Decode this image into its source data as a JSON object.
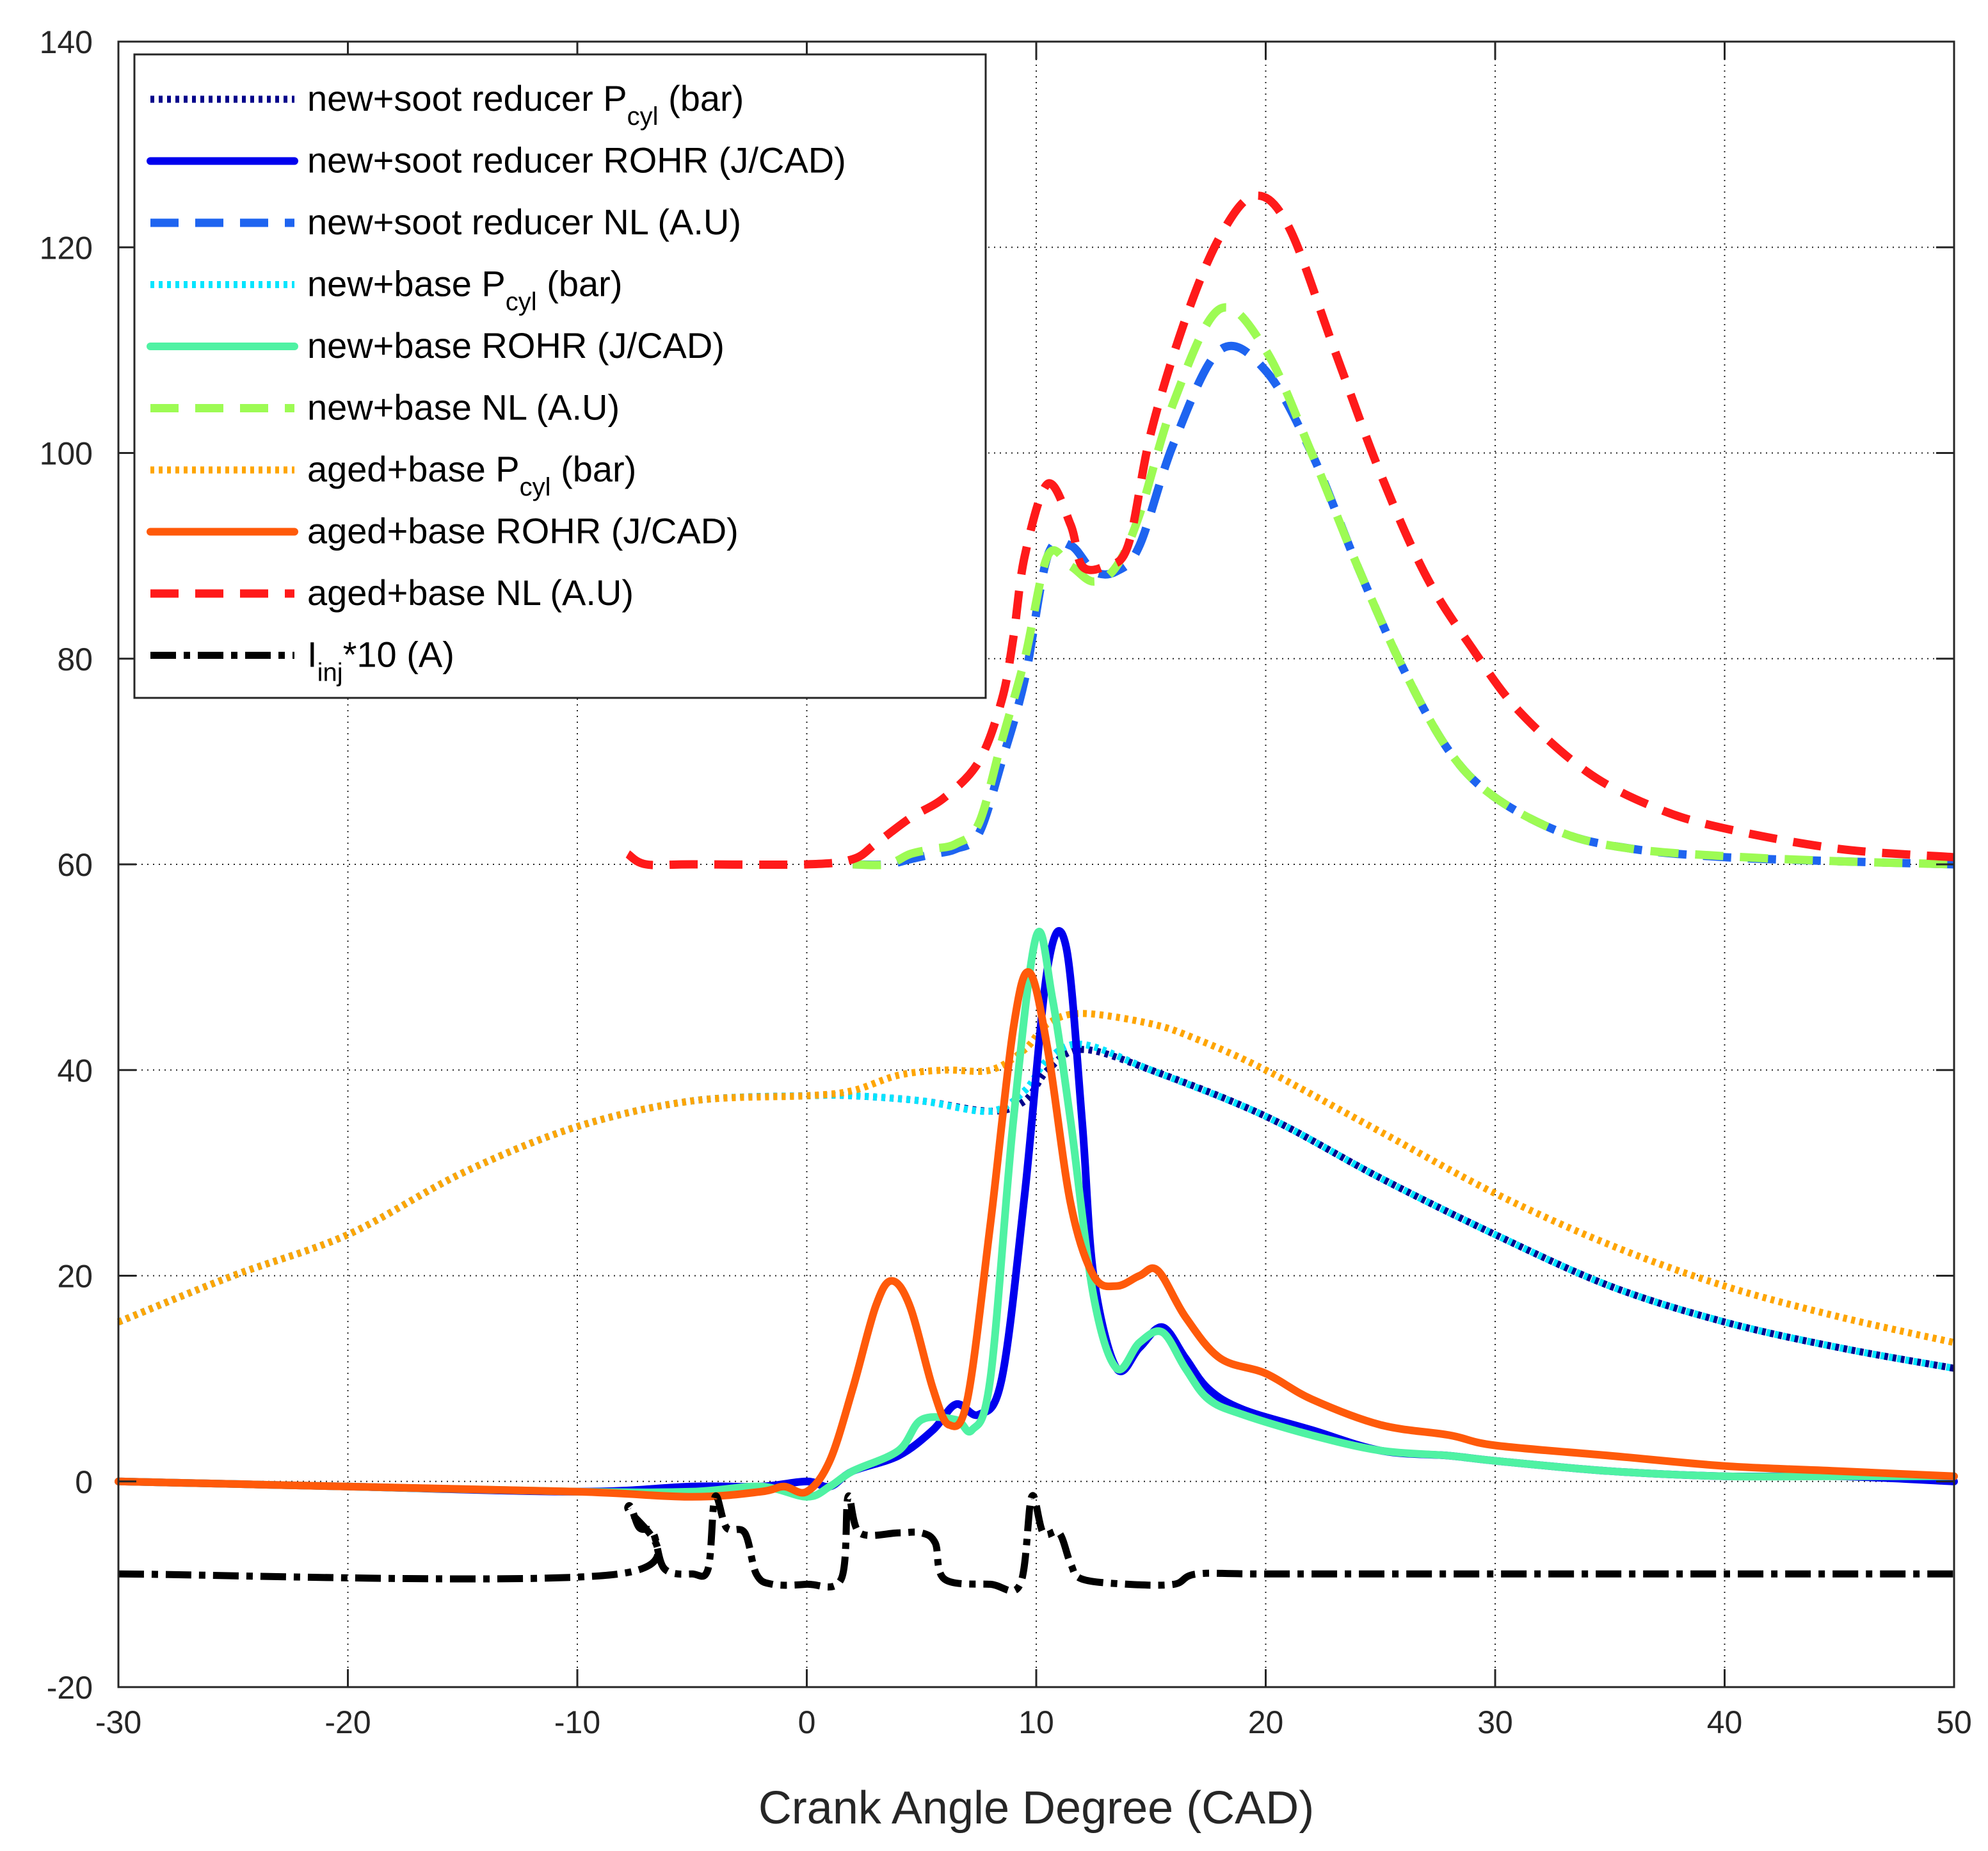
{
  "chart_data": {
    "type": "line",
    "title": "",
    "xlabel": "Crank Angle Degree (CAD)",
    "ylabel": "",
    "xlim": [
      -30,
      50
    ],
    "ylim": [
      -20,
      140
    ],
    "grid": true,
    "legend_position": "top-left",
    "x_ticks": [
      -30,
      -20,
      -10,
      0,
      10,
      20,
      30,
      40,
      50
    ],
    "x_tick_labels": [
      "-30",
      "-20",
      "-10",
      "0",
      "10",
      "20",
      "30",
      "40",
      "50"
    ],
    "y_ticks": [
      -20,
      0,
      20,
      40,
      60,
      80,
      100,
      120,
      140
    ],
    "y_tick_labels": [
      "-20",
      "0",
      "20",
      "40",
      "60",
      "80",
      "100",
      "120",
      "140"
    ],
    "series": [
      {
        "name": "new+soot reducer P_cyl (bar)",
        "legend_main": "new+soot reducer P",
        "legend_sub": "cyl",
        "legend_tail": " (bar)",
        "color": "#00008b",
        "dash": "dotted",
        "points": [
          [
            -30,
            15.5
          ],
          [
            -25,
            20
          ],
          [
            -20,
            24
          ],
          [
            -15,
            30
          ],
          [
            -10,
            34.5
          ],
          [
            -5,
            37
          ],
          [
            0,
            37.5
          ],
          [
            2,
            37.5
          ],
          [
            5,
            37
          ],
          [
            8,
            36
          ],
          [
            9.5,
            37
          ],
          [
            10.5,
            40
          ],
          [
            12,
            42
          ],
          [
            15,
            40
          ],
          [
            20,
            35.5
          ],
          [
            25,
            29.5
          ],
          [
            30,
            24
          ],
          [
            35,
            19
          ],
          [
            40,
            15.5
          ],
          [
            45,
            13
          ],
          [
            50,
            11
          ]
        ]
      },
      {
        "name": "new+soot reducer ROHR (J/CAD)",
        "legend_main": "new+soot reducer ROHR (J/CAD)",
        "legend_sub": "",
        "legend_tail": "",
        "color": "#0000ee",
        "dash": "solid",
        "points": [
          [
            -30,
            0
          ],
          [
            -20,
            -0.5
          ],
          [
            -10,
            -1
          ],
          [
            -5,
            -0.5
          ],
          [
            -2,
            -0.5
          ],
          [
            0,
            0
          ],
          [
            1,
            -0.5
          ],
          [
            2,
            1
          ],
          [
            4,
            2.5
          ],
          [
            5.5,
            5
          ],
          [
            6.5,
            7.5
          ],
          [
            7.5,
            6.5
          ],
          [
            8.5,
            10
          ],
          [
            9.5,
            28
          ],
          [
            10.5,
            50
          ],
          [
            11.3,
            52
          ],
          [
            12,
            35
          ],
          [
            12.5,
            20
          ],
          [
            13.5,
            11
          ],
          [
            14.5,
            13
          ],
          [
            15.5,
            15
          ],
          [
            16.5,
            12
          ],
          [
            17.5,
            9
          ],
          [
            19,
            7
          ],
          [
            22,
            5
          ],
          [
            25,
            3
          ],
          [
            28,
            2.5
          ],
          [
            30,
            2
          ],
          [
            35,
            1
          ],
          [
            40,
            0.5
          ],
          [
            45,
            0.5
          ],
          [
            50,
            0
          ]
        ]
      },
      {
        "name": "new+soot reducer NL (A.U)",
        "legend_main": "new+soot reducer NL (A.U)",
        "legend_sub": "",
        "legend_tail": "",
        "color": "#1e64f0",
        "dash": "dashed",
        "points": [
          [
            2,
            60
          ],
          [
            3.5,
            60
          ],
          [
            4.5,
            60.5
          ],
          [
            5.5,
            61
          ],
          [
            6.5,
            61.5
          ],
          [
            7.5,
            63
          ],
          [
            8.5,
            70
          ],
          [
            9.5,
            78
          ],
          [
            10.5,
            90
          ],
          [
            11.5,
            91
          ],
          [
            12.5,
            88.5
          ],
          [
            13.5,
            88.5
          ],
          [
            14.5,
            91
          ],
          [
            16,
            101
          ],
          [
            18,
            110
          ],
          [
            20,
            108
          ],
          [
            22,
            100
          ],
          [
            24,
            89
          ],
          [
            26,
            79
          ],
          [
            28,
            71
          ],
          [
            30,
            66.5
          ],
          [
            33,
            63
          ],
          [
            36,
            61.5
          ],
          [
            40,
            60.7
          ],
          [
            45,
            60.3
          ],
          [
            50,
            60
          ]
        ]
      },
      {
        "name": "new+base P_cyl (bar)",
        "legend_main": "new+base P",
        "legend_sub": "cyl",
        "legend_tail": " (bar)",
        "color": "#00e5ff",
        "dash": "dotted",
        "points": [
          [
            -30,
            15.5
          ],
          [
            -25,
            20
          ],
          [
            -20,
            24
          ],
          [
            -15,
            30
          ],
          [
            -10,
            34.5
          ],
          [
            -5,
            37
          ],
          [
            0,
            37.5
          ],
          [
            2,
            37.5
          ],
          [
            5,
            37
          ],
          [
            8,
            36
          ],
          [
            9.5,
            38
          ],
          [
            10.5,
            41
          ],
          [
            12,
            42.5
          ],
          [
            15,
            40
          ],
          [
            20,
            35.5
          ],
          [
            25,
            29.5
          ],
          [
            30,
            24
          ],
          [
            35,
            19
          ],
          [
            40,
            15.5
          ],
          [
            45,
            13
          ],
          [
            50,
            11
          ]
        ]
      },
      {
        "name": "new+base ROHR (J/CAD)",
        "legend_main": "new+base ROHR (J/CAD)",
        "legend_sub": "",
        "legend_tail": "",
        "color": "#4ff2a3",
        "dash": "solid",
        "points": [
          [
            -30,
            0
          ],
          [
            -20,
            -0.5
          ],
          [
            -10,
            -1
          ],
          [
            -5,
            -1
          ],
          [
            -2,
            -0.5
          ],
          [
            0,
            -1.5
          ],
          [
            1,
            -0.5
          ],
          [
            2,
            1
          ],
          [
            4,
            3
          ],
          [
            5,
            6
          ],
          [
            6.5,
            6
          ],
          [
            7.2,
            5
          ],
          [
            8,
            10
          ],
          [
            9,
            35
          ],
          [
            10,
            53
          ],
          [
            10.7,
            47
          ],
          [
            11.5,
            35
          ],
          [
            12.5,
            18
          ],
          [
            13.5,
            11
          ],
          [
            14.5,
            13.5
          ],
          [
            15.5,
            14.5
          ],
          [
            16.5,
            11
          ],
          [
            17.5,
            8
          ],
          [
            19,
            6.5
          ],
          [
            22,
            4.5
          ],
          [
            25,
            3
          ],
          [
            28,
            2.5
          ],
          [
            30,
            2
          ],
          [
            35,
            1
          ],
          [
            40,
            0.5
          ],
          [
            45,
            0.5
          ],
          [
            50,
            0.5
          ]
        ]
      },
      {
        "name": "new+base NL (A.U)",
        "legend_main": "new+base NL (A.U)",
        "legend_sub": "",
        "legend_tail": "",
        "color": "#9dfb54",
        "dash": "dashed",
        "points": [
          [
            2,
            60
          ],
          [
            3.5,
            60
          ],
          [
            4.5,
            61
          ],
          [
            5.5,
            61.5
          ],
          [
            6.5,
            62
          ],
          [
            7.5,
            64
          ],
          [
            8.5,
            72
          ],
          [
            9.5,
            80
          ],
          [
            10.5,
            90
          ],
          [
            11.5,
            89
          ],
          [
            12.5,
            87.5
          ],
          [
            13.5,
            89
          ],
          [
            14.5,
            94
          ],
          [
            16,
            105
          ],
          [
            18,
            114
          ],
          [
            20,
            110
          ],
          [
            22,
            100
          ],
          [
            24,
            89
          ],
          [
            26,
            79
          ],
          [
            28,
            71
          ],
          [
            30,
            66.5
          ],
          [
            33,
            63
          ],
          [
            36,
            61.5
          ],
          [
            40,
            60.8
          ],
          [
            45,
            60.3
          ],
          [
            50,
            60
          ]
        ]
      },
      {
        "name": "aged+base P_cyl (bar)",
        "legend_main": "aged+base P",
        "legend_sub": "cyl",
        "legend_tail": " (bar)",
        "color": "#ffa500",
        "dash": "dotted",
        "points": [
          [
            -30,
            15.5
          ],
          [
            -25,
            20
          ],
          [
            -20,
            24
          ],
          [
            -15,
            30
          ],
          [
            -10,
            34.5
          ],
          [
            -5,
            37
          ],
          [
            0,
            37.5
          ],
          [
            2,
            38
          ],
          [
            4,
            39.5
          ],
          [
            6,
            40
          ],
          [
            8,
            40
          ],
          [
            9.5,
            42
          ],
          [
            10.5,
            44.5
          ],
          [
            12,
            45.5
          ],
          [
            15,
            44.5
          ],
          [
            17,
            43
          ],
          [
            20,
            40
          ],
          [
            25,
            34
          ],
          [
            30,
            28
          ],
          [
            35,
            23
          ],
          [
            40,
            19
          ],
          [
            45,
            16
          ],
          [
            50,
            13.5
          ]
        ]
      },
      {
        "name": "aged+base ROHR (J/CAD)",
        "legend_main": "aged+base ROHR (J/CAD)",
        "legend_sub": "",
        "legend_tail": "",
        "color": "#ff5a0a",
        "dash": "solid",
        "points": [
          [
            -30,
            0
          ],
          [
            -20,
            -0.5
          ],
          [
            -10,
            -1
          ],
          [
            -5,
            -1.5
          ],
          [
            -2,
            -1
          ],
          [
            -1,
            -0.5
          ],
          [
            0,
            -1
          ],
          [
            1,
            2
          ],
          [
            2,
            9
          ],
          [
            3,
            17
          ],
          [
            3.7,
            19.5
          ],
          [
            4.5,
            17
          ],
          [
            5.5,
            9
          ],
          [
            6.2,
            5.5
          ],
          [
            7,
            8
          ],
          [
            8,
            25
          ],
          [
            9,
            44
          ],
          [
            9.7,
            49.5
          ],
          [
            10.5,
            42
          ],
          [
            11.5,
            27
          ],
          [
            12.5,
            20
          ],
          [
            13.5,
            19
          ],
          [
            14.5,
            20
          ],
          [
            15.3,
            20.5
          ],
          [
            16.5,
            16
          ],
          [
            18,
            12
          ],
          [
            20,
            10.5
          ],
          [
            22,
            8
          ],
          [
            25,
            5.5
          ],
          [
            28,
            4.5
          ],
          [
            30,
            3.5
          ],
          [
            35,
            2.5
          ],
          [
            40,
            1.5
          ],
          [
            45,
            1
          ],
          [
            50,
            0.5
          ]
        ]
      },
      {
        "name": "aged+base NL (A.U)",
        "legend_main": "aged+base NL (A.U)",
        "legend_sub": "",
        "legend_tail": "",
        "color": "#ff1a1a",
        "dash": "dashed",
        "points": [
          [
            -7.8,
            61
          ],
          [
            -7,
            60
          ],
          [
            -5,
            60
          ],
          [
            0,
            60
          ],
          [
            2,
            60.5
          ],
          [
            3,
            62
          ],
          [
            4.5,
            64.5
          ],
          [
            6,
            66.5
          ],
          [
            7.5,
            70
          ],
          [
            8.5,
            76
          ],
          [
            9,
            82
          ],
          [
            9.5,
            90
          ],
          [
            10.5,
            97
          ],
          [
            11.5,
            93
          ],
          [
            12,
            89
          ],
          [
            13,
            89
          ],
          [
            14,
            91
          ],
          [
            15,
            102
          ],
          [
            16.5,
            113
          ],
          [
            18,
            121
          ],
          [
            19.5,
            125
          ],
          [
            21,
            122
          ],
          [
            23,
            110
          ],
          [
            25,
            98
          ],
          [
            27,
            88
          ],
          [
            29,
            81
          ],
          [
            31,
            75
          ],
          [
            34,
            69
          ],
          [
            37,
            65.5
          ],
          [
            40,
            63.5
          ],
          [
            45,
            61.5
          ],
          [
            50,
            60.7
          ]
        ]
      },
      {
        "name": "I_inj*10 (A)",
        "legend_main": "I",
        "legend_sub": "inj",
        "legend_tail": "*10 (A)",
        "color": "#000000",
        "dash": "dashdot",
        "points": [
          [
            -30,
            -9
          ],
          [
            -8.2,
            -9
          ],
          [
            -7.8,
            -2.5
          ],
          [
            -7.3,
            -4.5
          ],
          [
            -6.7,
            -5
          ],
          [
            -6.2,
            -8.5
          ],
          [
            -5,
            -9
          ],
          [
            -4.3,
            -8.5
          ],
          [
            -4,
            -1.5
          ],
          [
            -3.5,
            -4.5
          ],
          [
            -2.7,
            -5
          ],
          [
            -2.2,
            -9
          ],
          [
            -1.5,
            -10
          ],
          [
            0,
            -10
          ],
          [
            1.5,
            -9.5
          ],
          [
            1.8,
            -1.5
          ],
          [
            2.3,
            -5
          ],
          [
            4,
            -5
          ],
          [
            5,
            -5
          ],
          [
            5.6,
            -6
          ],
          [
            6,
            -9.5
          ],
          [
            8,
            -10
          ],
          [
            9.3,
            -10
          ],
          [
            9.8,
            -1.5
          ],
          [
            10.3,
            -5
          ],
          [
            11,
            -5
          ],
          [
            11.5,
            -8
          ],
          [
            12,
            -9.5
          ],
          [
            14,
            -10
          ],
          [
            16,
            -10
          ],
          [
            17,
            -9
          ],
          [
            20,
            -9
          ],
          [
            30,
            -9
          ],
          [
            40,
            -9
          ],
          [
            50,
            -9
          ]
        ]
      }
    ]
  }
}
